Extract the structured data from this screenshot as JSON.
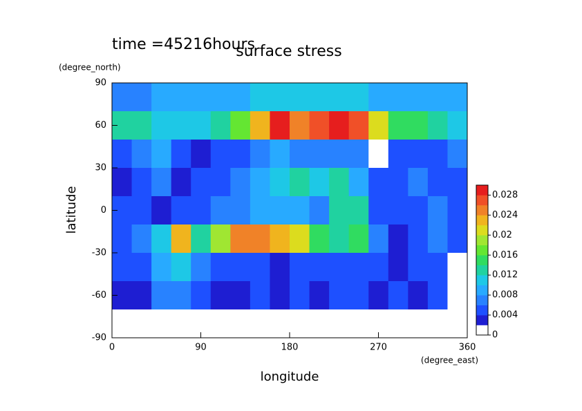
{
  "chart_data": {
    "type": "contour",
    "title": "surface stress",
    "subtitle": "time =45216hours",
    "x_label": "longitude",
    "y_label": "latitude",
    "x_unit": "(degree_east)",
    "y_unit": "(degree_north)",
    "x": [
      10,
      30,
      50,
      70,
      90,
      110,
      130,
      150,
      170,
      190,
      210,
      230,
      250,
      270,
      290,
      310,
      330,
      350
    ],
    "y": [
      80,
      60,
      40,
      20,
      0,
      -20,
      -40,
      -60,
      -80
    ],
    "z": [
      [
        0.007,
        0.007,
        0.008,
        0.008,
        0.008,
        0.008,
        0.009,
        0.01,
        0.01,
        0.01,
        0.01,
        0.01,
        0.01,
        0.009,
        0.008,
        0.008,
        0.008,
        0.008
      ],
      [
        0.012,
        0.012,
        0.01,
        0.01,
        0.01,
        0.012,
        0.016,
        0.022,
        0.028,
        0.024,
        0.026,
        0.03,
        0.026,
        0.02,
        0.014,
        0.014,
        0.012,
        0.01
      ],
      [
        0.005,
        0.006,
        0.008,
        0.005,
        0.003,
        0.004,
        0.005,
        0.006,
        0.008,
        0.006,
        0.006,
        0.006,
        0.006,
        0.001,
        0.004,
        0.005,
        0.005,
        0.006
      ],
      [
        0.003,
        0.004,
        0.006,
        0.003,
        0.005,
        0.004,
        0.006,
        0.008,
        0.01,
        0.012,
        0.01,
        0.012,
        0.008,
        0.004,
        0.005,
        0.006,
        0.005,
        0.004
      ],
      [
        0.004,
        0.005,
        0.003,
        0.004,
        0.005,
        0.006,
        0.007,
        0.008,
        0.009,
        0.008,
        0.006,
        0.012,
        0.012,
        0.005,
        0.004,
        0.005,
        0.006,
        0.004
      ],
      [
        0.004,
        0.006,
        0.01,
        0.022,
        0.012,
        0.018,
        0.024,
        0.024,
        0.022,
        0.02,
        0.014,
        0.012,
        0.014,
        0.006,
        0.002,
        0.004,
        0.006,
        0.004
      ],
      [
        0.004,
        0.005,
        0.008,
        0.01,
        0.006,
        0.004,
        0.005,
        0.004,
        0.003,
        0.004,
        0.004,
        0.005,
        0.005,
        0.004,
        0.003,
        0.004,
        0.004,
        0.001
      ],
      [
        0.002,
        0.003,
        0.006,
        0.006,
        0.004,
        0.003,
        0.003,
        0.004,
        0.003,
        0.004,
        0.003,
        0.004,
        0.004,
        0.002,
        0.004,
        0.003,
        0.004,
        0.001
      ],
      [
        0,
        0,
        0,
        0,
        0,
        0,
        0,
        0,
        0,
        0,
        0,
        0,
        0,
        0,
        0,
        0,
        0,
        0
      ]
    ],
    "xlim": [
      0,
      360
    ],
    "xticks": [
      0,
      90,
      180,
      270,
      360
    ],
    "ylim": [
      -90,
      90
    ],
    "yticks": [
      -90,
      -60,
      -30,
      0,
      30,
      60,
      90
    ],
    "clim": [
      0,
      0.03
    ],
    "cticks": [
      0,
      0.004,
      0.008,
      0.012,
      0.016,
      0.02,
      0.024,
      0.028
    ],
    "colors": [
      "#ffffff",
      "#1e1ed2",
      "#1e50ff",
      "#2882ff",
      "#28aaff",
      "#1ec8e6",
      "#20d2a0",
      "#30dc60",
      "#64e632",
      "#a0e632",
      "#dcdc1e",
      "#f0b41e",
      "#f08228",
      "#f05028",
      "#e61e1e"
    ]
  }
}
